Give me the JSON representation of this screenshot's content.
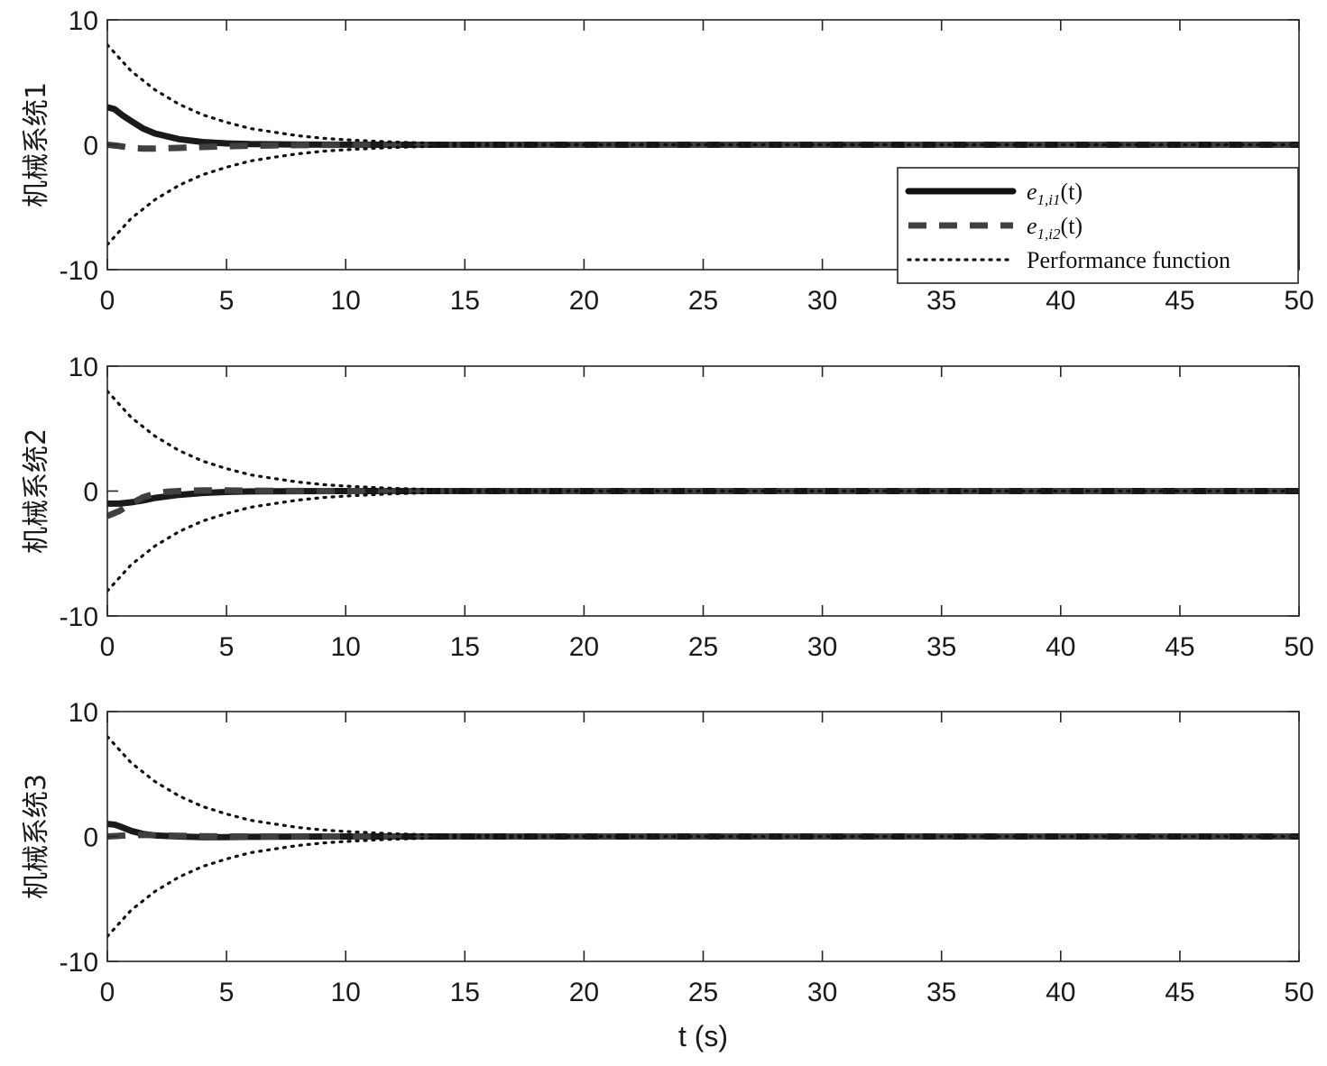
{
  "chart_data": [
    {
      "type": "line",
      "ylabel": "机械系统1",
      "xlabel": "",
      "xlim": [
        0,
        50
      ],
      "ylim": [
        -10,
        10
      ],
      "xticks": [
        "0",
        "5",
        "10",
        "15",
        "20",
        "25",
        "30",
        "35",
        "40",
        "45",
        "50"
      ],
      "yticks": [
        "10",
        "0",
        "-10"
      ],
      "grid": false,
      "series": [
        {
          "name": "e_{1,i1}(t)",
          "style": "solid",
          "color": "#1a1a1a",
          "x": [
            0,
            0.3,
            0.6,
            1,
            1.5,
            2,
            3,
            4,
            5,
            6,
            8,
            10,
            12,
            15,
            20,
            30,
            40,
            50
          ],
          "y": [
            3,
            2.85,
            2.4,
            1.9,
            1.3,
            0.9,
            0.45,
            0.22,
            0.11,
            0.05,
            0.02,
            0.01,
            0,
            0,
            0,
            0,
            0,
            0
          ]
        },
        {
          "name": "e_{1,i2}(t)",
          "style": "dashed",
          "color": "#404040",
          "x": [
            0,
            0.5,
            1,
            1.5,
            2,
            3,
            4,
            5,
            6,
            8,
            10,
            15,
            20,
            30,
            40,
            50
          ],
          "y": [
            0,
            -0.1,
            -0.25,
            -0.3,
            -0.3,
            -0.25,
            -0.18,
            -0.12,
            -0.08,
            -0.03,
            -0.01,
            0,
            0,
            0,
            0,
            0
          ]
        },
        {
          "name": "Performance function",
          "style": "dotted",
          "color": "#111111",
          "x": [
            0,
            1,
            2,
            3,
            4,
            5,
            6,
            7,
            8,
            9,
            10,
            11,
            12,
            13,
            15,
            20,
            30,
            40,
            50
          ],
          "y": [
            8,
            5.9,
            4.4,
            3.25,
            2.4,
            1.8,
            1.3,
            1.0,
            0.72,
            0.53,
            0.4,
            0.3,
            0.22,
            0.16,
            0.09,
            0.02,
            0,
            0,
            0
          ]
        },
        {
          "name": "",
          "style": "dotted",
          "color": "#111111",
          "x": [
            0,
            1,
            2,
            3,
            4,
            5,
            6,
            7,
            8,
            9,
            10,
            11,
            12,
            13,
            15,
            20,
            30,
            40,
            50
          ],
          "y": [
            -8,
            -5.9,
            -4.4,
            -3.25,
            -2.4,
            -1.8,
            -1.3,
            -1.0,
            -0.72,
            -0.53,
            -0.4,
            -0.3,
            -0.22,
            -0.16,
            -0.09,
            -0.02,
            0,
            0,
            0
          ]
        }
      ],
      "legend": {
        "position": "right",
        "entries": [
          {
            "main": "e",
            "sub": "1,i1",
            "tail": "(t)",
            "style": "solid"
          },
          {
            "main": "e",
            "sub": "1,i2",
            "tail": "(t)",
            "style": "dashed"
          },
          {
            "main": "Performance function",
            "sub": "",
            "tail": "",
            "style": "dotted"
          }
        ]
      }
    },
    {
      "type": "line",
      "ylabel": "机械系统2",
      "xlabel": "",
      "xlim": [
        0,
        50
      ],
      "ylim": [
        -10,
        10
      ],
      "xticks": [
        "0",
        "5",
        "10",
        "15",
        "20",
        "25",
        "30",
        "35",
        "40",
        "45",
        "50"
      ],
      "yticks": [
        "10",
        "0",
        "-10"
      ],
      "grid": false,
      "series": [
        {
          "name": "e_{1,i1}(t)",
          "style": "solid",
          "color": "#1a1a1a",
          "x": [
            0,
            0.5,
            1,
            1.5,
            2,
            3,
            4,
            5,
            6,
            8,
            10,
            15,
            20,
            30,
            40,
            50
          ],
          "y": [
            -1,
            -1.0,
            -0.9,
            -0.75,
            -0.55,
            -0.3,
            -0.15,
            -0.07,
            -0.03,
            -0.01,
            0,
            0,
            0,
            0,
            0,
            0
          ]
        },
        {
          "name": "e_{1,i2}(t)",
          "style": "dashed",
          "color": "#404040",
          "x": [
            0,
            0.5,
            1,
            1.5,
            2,
            2.5,
            3,
            4,
            5,
            6,
            8,
            10,
            15,
            20,
            30,
            40,
            50
          ],
          "y": [
            -2,
            -1.6,
            -1.0,
            -0.5,
            -0.2,
            -0.05,
            0,
            0.05,
            0.05,
            0.03,
            0.01,
            0,
            0,
            0,
            0,
            0,
            0
          ]
        },
        {
          "name": "Performance function",
          "style": "dotted",
          "color": "#111111",
          "x": [
            0,
            1,
            2,
            3,
            4,
            5,
            6,
            7,
            8,
            9,
            10,
            11,
            12,
            13,
            15,
            20,
            30,
            40,
            50
          ],
          "y": [
            8,
            5.9,
            4.4,
            3.25,
            2.4,
            1.8,
            1.3,
            1.0,
            0.72,
            0.53,
            0.4,
            0.3,
            0.22,
            0.16,
            0.09,
            0.02,
            0,
            0,
            0
          ]
        },
        {
          "name": "",
          "style": "dotted",
          "color": "#111111",
          "x": [
            0,
            1,
            2,
            3,
            4,
            5,
            6,
            7,
            8,
            9,
            10,
            11,
            12,
            13,
            15,
            20,
            30,
            40,
            50
          ],
          "y": [
            -8,
            -5.9,
            -4.4,
            -3.25,
            -2.4,
            -1.8,
            -1.3,
            -1.0,
            -0.72,
            -0.53,
            -0.4,
            -0.3,
            -0.22,
            -0.16,
            -0.09,
            -0.02,
            0,
            0,
            0
          ]
        }
      ]
    },
    {
      "type": "line",
      "ylabel": "机械系统3",
      "xlabel": "t (s)",
      "xlim": [
        0,
        50
      ],
      "ylim": [
        -10,
        10
      ],
      "xticks": [
        "0",
        "5",
        "10",
        "15",
        "20",
        "25",
        "30",
        "35",
        "40",
        "45",
        "50"
      ],
      "yticks": [
        "10",
        "0",
        "-10"
      ],
      "grid": false,
      "series": [
        {
          "name": "e_{1,i1}(t)",
          "style": "solid",
          "color": "#1a1a1a",
          "x": [
            0,
            0.3,
            0.6,
            1,
            1.5,
            2,
            3,
            4,
            5,
            6,
            8,
            10,
            15,
            20,
            30,
            40,
            50
          ],
          "y": [
            1,
            0.95,
            0.75,
            0.45,
            0.2,
            0.08,
            0,
            -0.05,
            -0.05,
            -0.03,
            -0.01,
            0,
            0,
            0,
            0,
            0,
            0
          ]
        },
        {
          "name": "e_{1,i2}(t)",
          "style": "dashed",
          "color": "#404040",
          "x": [
            0,
            0.5,
            1,
            1.5,
            2,
            3,
            4,
            5,
            6,
            8,
            10,
            15,
            20,
            30,
            40,
            50
          ],
          "y": [
            0,
            0.05,
            0.1,
            0.12,
            0.1,
            0.05,
            0.02,
            0,
            0,
            0,
            0,
            0,
            0,
            0,
            0,
            0
          ]
        },
        {
          "name": "Performance function",
          "style": "dotted",
          "color": "#111111",
          "x": [
            0,
            1,
            2,
            3,
            4,
            5,
            6,
            7,
            8,
            9,
            10,
            11,
            12,
            13,
            15,
            20,
            30,
            40,
            50
          ],
          "y": [
            8,
            5.9,
            4.4,
            3.25,
            2.4,
            1.8,
            1.3,
            1.0,
            0.72,
            0.53,
            0.4,
            0.3,
            0.22,
            0.16,
            0.09,
            0.02,
            0,
            0,
            0
          ]
        },
        {
          "name": "",
          "style": "dotted",
          "color": "#111111",
          "x": [
            0,
            1,
            2,
            3,
            4,
            5,
            6,
            7,
            8,
            9,
            10,
            11,
            12,
            13,
            15,
            20,
            30,
            40,
            50
          ],
          "y": [
            -8,
            -5.9,
            -4.4,
            -3.25,
            -2.4,
            -1.8,
            -1.3,
            -1.0,
            -0.72,
            -0.53,
            -0.4,
            -0.3,
            -0.22,
            -0.16,
            -0.09,
            -0.02,
            0,
            0,
            0
          ]
        }
      ]
    }
  ]
}
